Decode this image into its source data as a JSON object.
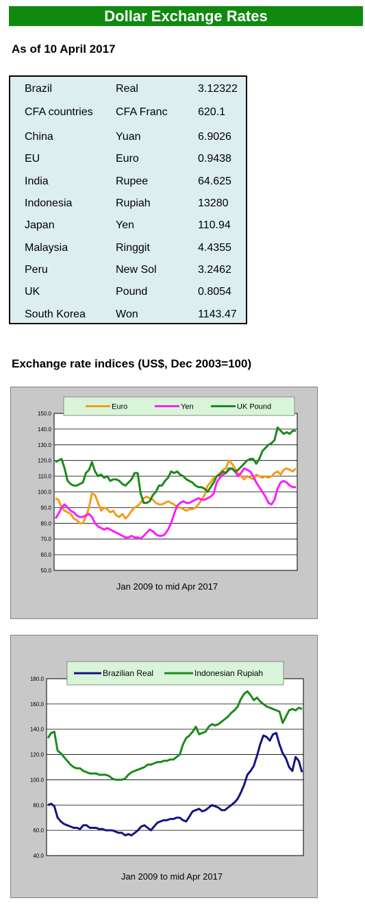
{
  "header": {
    "title": "Dollar Exchange Rates"
  },
  "as_of": "As of 10 April 2017",
  "rates": [
    {
      "country": "Brazil",
      "currency": "Real",
      "value": "3.12322"
    },
    {
      "country": "CFA countries",
      "currency": "CFA Franc",
      "value": "620.1"
    },
    {
      "country": "China",
      "currency": "Yuan",
      "value": "6.9026"
    },
    {
      "country": "EU",
      "currency": "Euro",
      "value": "0.9438"
    },
    {
      "country": "India",
      "currency": "Rupee",
      "value": "64.625"
    },
    {
      "country": "Indonesia",
      "currency": "Rupiah",
      "value": "13280"
    },
    {
      "country": "Japan",
      "currency": "Yen",
      "value": "110.94"
    },
    {
      "country": "Malaysia",
      "currency": "Ringgit",
      "value": "4.4355"
    },
    {
      "country": "Peru",
      "currency": "New Sol",
      "value": "3.2462"
    },
    {
      "country": "UK",
      "currency": "Pound",
      "value": "0.8054"
    },
    {
      "country": "South Korea",
      "currency": "Won",
      "value": "1143.47"
    }
  ],
  "section_title": "Exchange rate indices (US$, Dec 2003=100)",
  "chart_data": [
    {
      "type": "line",
      "title": "",
      "xlabel": "Jan 2009  to mid Apr 2017",
      "ylabel": "",
      "ylim": [
        50,
        150
      ],
      "yticks": [
        "50.0",
        "60.0",
        "70.0",
        "80.0",
        "90.0",
        "100.0",
        "110.0",
        "120.0",
        "130.0",
        "140.0",
        "150.0"
      ],
      "grid": true,
      "legend": "top",
      "series": [
        {
          "name": "Euro",
          "color": "#f39c1a",
          "values": [
            96,
            95,
            90,
            88,
            87,
            86,
            83,
            82,
            80,
            80,
            84,
            90,
            99,
            98,
            93,
            88,
            90,
            89,
            87,
            88,
            85,
            84,
            86,
            83,
            85,
            88,
            90,
            91,
            93,
            96,
            97,
            96,
            95,
            93,
            92,
            92,
            93,
            94,
            93,
            92,
            90,
            90,
            89,
            88,
            89,
            89,
            90,
            92,
            95,
            98,
            104,
            106,
            109,
            110,
            112,
            114,
            115,
            120,
            118,
            115,
            112,
            110,
            108,
            110,
            109,
            108,
            111,
            110,
            109,
            110,
            109,
            110,
            112,
            113,
            111,
            114,
            115,
            114,
            113,
            115
          ]
        },
        {
          "name": "Yen",
          "color": "#ff1aff",
          "values": [
            83,
            86,
            90,
            92,
            90,
            88,
            87,
            85,
            84,
            84,
            85,
            86,
            84,
            80,
            78,
            77,
            76,
            77,
            76,
            75,
            74,
            73,
            72,
            71,
            71,
            72,
            71,
            71,
            70,
            72,
            74,
            76,
            75,
            73,
            72,
            72,
            73,
            76,
            80,
            86,
            91,
            93,
            94,
            93,
            93,
            94,
            95,
            96,
            95,
            95,
            96,
            97,
            99,
            106,
            109,
            111,
            112,
            114,
            115,
            113,
            110,
            112,
            115,
            114,
            113,
            110,
            106,
            103,
            100,
            97,
            93,
            92,
            95,
            102,
            106,
            107,
            106,
            104,
            103,
            103
          ]
        },
        {
          "name": "UK Pound",
          "color": "#1a8a1a",
          "values": [
            119,
            120,
            121,
            115,
            107,
            105,
            104,
            104,
            105,
            106,
            112,
            114,
            119,
            113,
            110,
            111,
            109,
            110,
            107,
            108,
            108,
            107,
            105,
            104,
            106,
            108,
            112,
            112,
            99,
            93,
            93,
            94,
            98,
            100,
            104,
            104,
            107,
            109,
            113,
            112,
            113,
            111,
            110,
            108,
            107,
            106,
            104,
            103,
            103,
            102,
            100,
            103,
            106,
            110,
            111,
            113,
            112,
            115,
            115,
            113,
            114,
            116,
            118,
            120,
            121,
            121,
            118,
            121,
            126,
            128,
            130,
            131,
            133,
            141,
            139,
            137,
            138,
            137,
            139,
            139
          ]
        }
      ]
    },
    {
      "type": "line",
      "title": "",
      "xlabel": "Jan 2009 to mid Apr 2017",
      "ylabel": "",
      "ylim": [
        40,
        180
      ],
      "yticks": [
        "40.0",
        "60.0",
        "80.0",
        "100.0",
        "120.0",
        "140.0",
        "160.0",
        "180.0"
      ],
      "grid": true,
      "legend": "top",
      "series": [
        {
          "name": "Brazilian Real",
          "color": "#131380",
          "values": [
            80,
            81,
            79,
            70,
            67,
            65,
            64,
            63,
            62,
            62,
            61,
            64,
            64,
            62,
            62,
            62,
            61,
            61,
            60,
            60,
            60,
            59,
            58,
            58,
            56,
            57,
            56,
            58,
            60,
            63,
            64,
            62,
            60,
            63,
            66,
            67,
            68,
            68,
            69,
            69,
            70,
            70,
            68,
            67,
            71,
            75,
            76,
            77,
            75,
            76,
            78,
            80,
            79,
            78,
            76,
            76,
            78,
            80,
            82,
            85,
            90,
            96,
            104,
            107,
            111,
            119,
            128,
            135,
            134,
            131,
            136,
            137,
            128,
            121,
            117,
            110,
            107,
            118,
            115,
            106
          ]
        },
        {
          "name": "Indonesian Rupiah",
          "color": "#1a8a1a",
          "values": [
            133,
            137,
            138,
            123,
            121,
            118,
            115,
            112,
            110,
            109,
            109,
            107,
            106,
            105,
            105,
            105,
            104,
            104,
            104,
            103,
            101,
            100,
            100,
            100,
            101,
            104,
            106,
            107,
            108,
            109,
            110,
            112,
            112,
            113,
            114,
            114,
            115,
            115,
            116,
            116,
            118,
            120,
            128,
            133,
            135,
            138,
            142,
            136,
            137,
            138,
            142,
            144,
            143,
            144,
            146,
            148,
            150,
            153,
            155,
            158,
            164,
            168,
            170,
            167,
            163,
            165,
            162,
            160,
            158,
            157,
            156,
            155,
            154,
            145,
            150,
            155,
            156,
            155,
            157,
            156
          ]
        }
      ]
    }
  ]
}
